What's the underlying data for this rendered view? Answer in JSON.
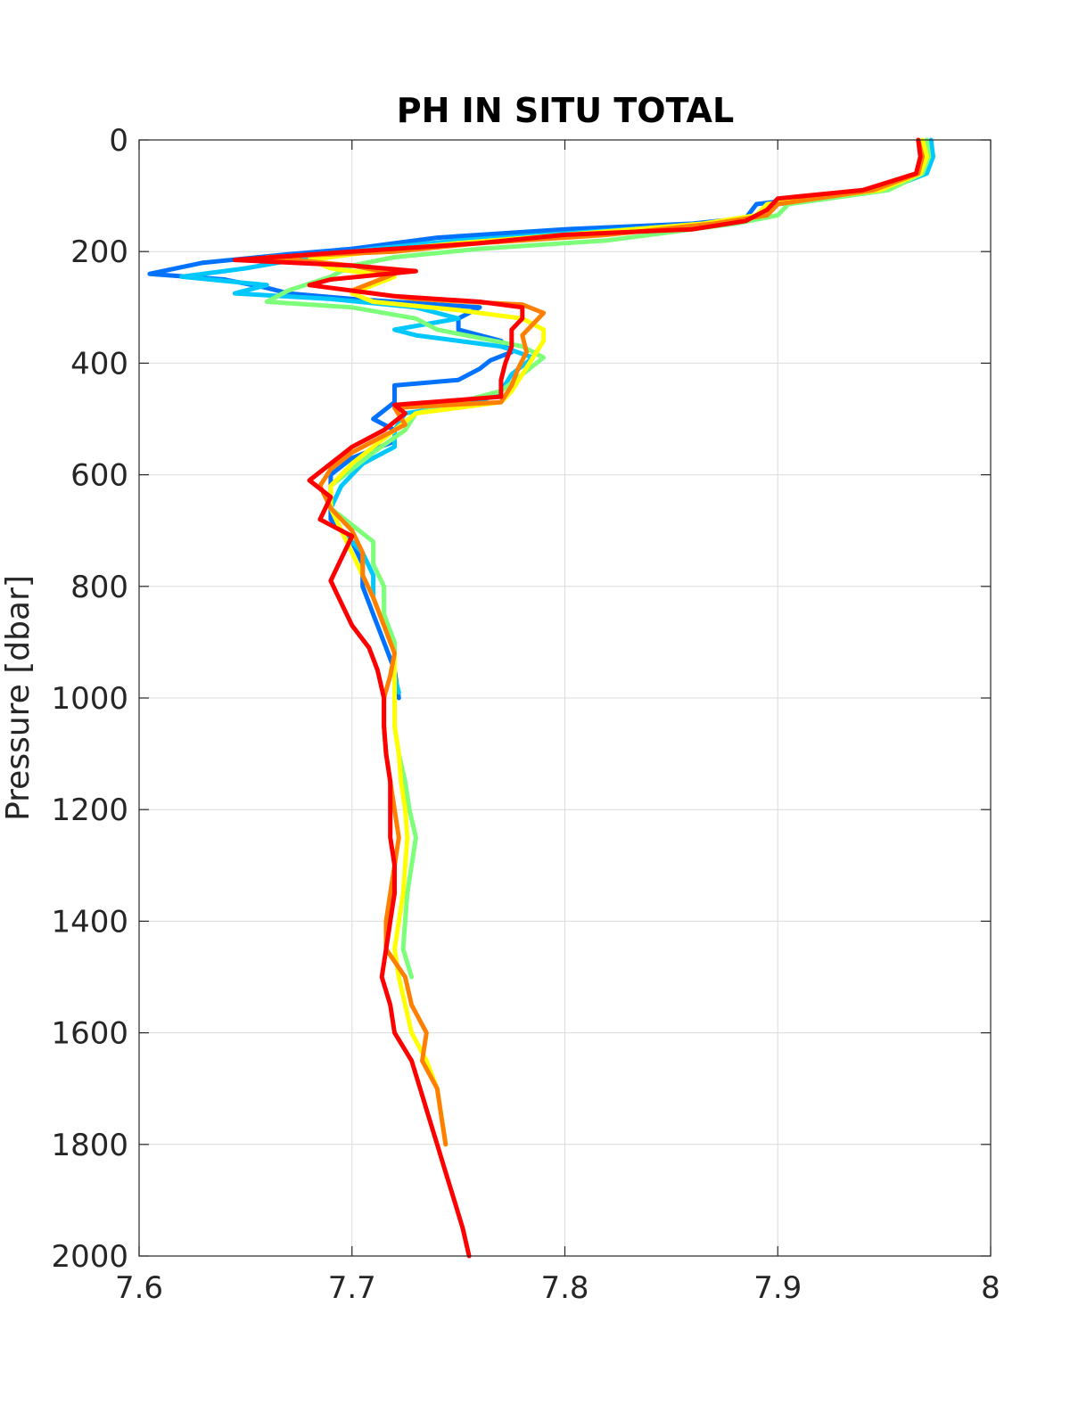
{
  "chart_data": {
    "type": "line",
    "title": "PH IN SITU TOTAL",
    "xlabel": "",
    "ylabel": "Pressure [dbar]",
    "xlim": [
      7.6,
      8.0
    ],
    "ylim": [
      0,
      2000
    ],
    "y_reversed": true,
    "grid": true,
    "x_ticks": [
      "7.6",
      "7.7",
      "7.8",
      "7.9",
      "8"
    ],
    "x_tick_values": [
      7.6,
      7.7,
      7.8,
      7.9,
      8.0
    ],
    "y_ticks": [
      "0",
      "200",
      "400",
      "600",
      "800",
      "1000",
      "1200",
      "1400",
      "1600",
      "1800",
      "2000"
    ],
    "y_tick_values": [
      0,
      200,
      400,
      600,
      800,
      1000,
      1200,
      1400,
      1600,
      1800,
      2000
    ],
    "series": [
      {
        "color": "#0072ff",
        "points": [
          [
            7.97,
            0
          ],
          [
            7.972,
            30
          ],
          [
            7.968,
            60
          ],
          [
            7.945,
            90
          ],
          [
            7.89,
            115
          ],
          [
            7.885,
            140
          ],
          [
            7.86,
            150
          ],
          [
            7.8,
            160
          ],
          [
            7.74,
            175
          ],
          [
            7.7,
            195
          ],
          [
            7.67,
            205
          ],
          [
            7.63,
            220
          ],
          [
            7.605,
            240
          ],
          [
            7.64,
            250
          ],
          [
            7.66,
            265
          ],
          [
            7.67,
            275
          ],
          [
            7.7,
            285
          ],
          [
            7.76,
            300
          ],
          [
            7.75,
            320
          ],
          [
            7.75,
            340
          ],
          [
            7.77,
            360
          ],
          [
            7.775,
            380
          ],
          [
            7.765,
            395
          ],
          [
            7.76,
            410
          ],
          [
            7.75,
            430
          ],
          [
            7.72,
            440
          ],
          [
            7.72,
            470
          ],
          [
            7.71,
            500
          ],
          [
            7.72,
            520
          ],
          [
            7.72,
            540
          ],
          [
            7.7,
            570
          ],
          [
            7.69,
            600
          ],
          [
            7.69,
            640
          ],
          [
            7.69,
            680
          ],
          [
            7.7,
            720
          ],
          [
            7.705,
            760
          ],
          [
            7.705,
            800
          ],
          [
            7.71,
            850
          ],
          [
            7.715,
            900
          ],
          [
            7.72,
            950
          ],
          [
            7.722,
            1000
          ]
        ]
      },
      {
        "color": "#00c8ff",
        "points": [
          [
            7.972,
            0
          ],
          [
            7.973,
            30
          ],
          [
            7.97,
            60
          ],
          [
            7.95,
            90
          ],
          [
            7.9,
            115
          ],
          [
            7.895,
            135
          ],
          [
            7.87,
            150
          ],
          [
            7.81,
            165
          ],
          [
            7.75,
            180
          ],
          [
            7.71,
            195
          ],
          [
            7.68,
            210
          ],
          [
            7.65,
            230
          ],
          [
            7.62,
            245
          ],
          [
            7.66,
            260
          ],
          [
            7.645,
            275
          ],
          [
            7.69,
            285
          ],
          [
            7.73,
            300
          ],
          [
            7.75,
            320
          ],
          [
            7.72,
            340
          ],
          [
            7.73,
            350
          ],
          [
            7.77,
            370
          ],
          [
            7.785,
            390
          ],
          [
            7.775,
            420
          ],
          [
            7.77,
            450
          ],
          [
            7.76,
            470
          ],
          [
            7.725,
            490
          ],
          [
            7.72,
            520
          ],
          [
            7.72,
            550
          ],
          [
            7.705,
            580
          ],
          [
            7.695,
            620
          ],
          [
            7.69,
            660
          ],
          [
            7.695,
            700
          ],
          [
            7.705,
            740
          ],
          [
            7.71,
            780
          ],
          [
            7.71,
            820
          ],
          [
            7.715,
            870
          ],
          [
            7.72,
            920
          ],
          [
            7.72,
            960
          ],
          [
            7.722,
            990
          ]
        ]
      },
      {
        "color": "#7dff7a",
        "points": [
          [
            7.97,
            0
          ],
          [
            7.971,
            30
          ],
          [
            7.968,
            60
          ],
          [
            7.952,
            90
          ],
          [
            7.905,
            115
          ],
          [
            7.9,
            135
          ],
          [
            7.88,
            150
          ],
          [
            7.82,
            180
          ],
          [
            7.76,
            195
          ],
          [
            7.72,
            210
          ],
          [
            7.7,
            225
          ],
          [
            7.69,
            245
          ],
          [
            7.67,
            270
          ],
          [
            7.66,
            290
          ],
          [
            7.7,
            300
          ],
          [
            7.73,
            320
          ],
          [
            7.74,
            340
          ],
          [
            7.76,
            355
          ],
          [
            7.78,
            370
          ],
          [
            7.79,
            390
          ],
          [
            7.78,
            420
          ],
          [
            7.77,
            450
          ],
          [
            7.75,
            470
          ],
          [
            7.73,
            490
          ],
          [
            7.725,
            520
          ],
          [
            7.71,
            560
          ],
          [
            7.7,
            590
          ],
          [
            7.69,
            620
          ],
          [
            7.69,
            660
          ],
          [
            7.7,
            690
          ],
          [
            7.71,
            720
          ],
          [
            7.71,
            760
          ],
          [
            7.715,
            800
          ],
          [
            7.715,
            850
          ],
          [
            7.72,
            900
          ],
          [
            7.72,
            960
          ],
          [
            7.72,
            1000
          ],
          [
            7.72,
            1050
          ],
          [
            7.722,
            1100
          ],
          [
            7.725,
            1150
          ],
          [
            7.727,
            1200
          ],
          [
            7.73,
            1250
          ],
          [
            7.728,
            1300
          ],
          [
            7.726,
            1350
          ],
          [
            7.725,
            1400
          ],
          [
            7.724,
            1450
          ],
          [
            7.728,
            1500
          ]
        ]
      },
      {
        "color": "#ffff00",
        "points": [
          [
            7.968,
            0
          ],
          [
            7.97,
            30
          ],
          [
            7.967,
            60
          ],
          [
            7.948,
            90
          ],
          [
            7.895,
            115
          ],
          [
            7.89,
            135
          ],
          [
            7.865,
            150
          ],
          [
            7.8,
            170
          ],
          [
            7.75,
            185
          ],
          [
            7.71,
            200
          ],
          [
            7.68,
            215
          ],
          [
            7.69,
            230
          ],
          [
            7.72,
            245
          ],
          [
            7.71,
            260
          ],
          [
            7.7,
            275
          ],
          [
            7.71,
            290
          ],
          [
            7.75,
            305
          ],
          [
            7.78,
            320
          ],
          [
            7.79,
            340
          ],
          [
            7.79,
            360
          ],
          [
            7.785,
            390
          ],
          [
            7.78,
            420
          ],
          [
            7.775,
            450
          ],
          [
            7.77,
            470
          ],
          [
            7.73,
            490
          ],
          [
            7.72,
            520
          ],
          [
            7.71,
            550
          ],
          [
            7.7,
            580
          ],
          [
            7.69,
            620
          ],
          [
            7.69,
            660
          ],
          [
            7.695,
            700
          ],
          [
            7.7,
            740
          ],
          [
            7.705,
            780
          ],
          [
            7.71,
            820
          ],
          [
            7.715,
            870
          ],
          [
            7.72,
            920
          ],
          [
            7.72,
            970
          ],
          [
            7.72,
            1000
          ],
          [
            7.72,
            1050
          ],
          [
            7.722,
            1100
          ],
          [
            7.723,
            1150
          ],
          [
            7.725,
            1200
          ],
          [
            7.726,
            1250
          ],
          [
            7.725,
            1300
          ],
          [
            7.724,
            1350
          ],
          [
            7.722,
            1400
          ],
          [
            7.72,
            1450
          ],
          [
            7.722,
            1500
          ],
          [
            7.725,
            1550
          ],
          [
            7.728,
            1600
          ],
          [
            7.735,
            1650
          ],
          [
            7.74,
            1700
          ],
          [
            7.742,
            1750
          ],
          [
            7.744,
            1800
          ]
        ]
      },
      {
        "color": "#ff8000",
        "points": [
          [
            7.966,
            0
          ],
          [
            7.968,
            30
          ],
          [
            7.966,
            60
          ],
          [
            7.945,
            90
          ],
          [
            7.9,
            115
          ],
          [
            7.895,
            135
          ],
          [
            7.87,
            150
          ],
          [
            7.82,
            170
          ],
          [
            7.76,
            185
          ],
          [
            7.72,
            200
          ],
          [
            7.66,
            210
          ],
          [
            7.7,
            225
          ],
          [
            7.72,
            240
          ],
          [
            7.71,
            255
          ],
          [
            7.7,
            270
          ],
          [
            7.73,
            285
          ],
          [
            7.78,
            295
          ],
          [
            7.79,
            310
          ],
          [
            7.785,
            330
          ],
          [
            7.78,
            350
          ],
          [
            7.782,
            380
          ],
          [
            7.778,
            410
          ],
          [
            7.775,
            440
          ],
          [
            7.77,
            470
          ],
          [
            7.72,
            480
          ],
          [
            7.725,
            510
          ],
          [
            7.71,
            540
          ],
          [
            7.7,
            560
          ],
          [
            7.69,
            590
          ],
          [
            7.685,
            620
          ],
          [
            7.69,
            660
          ],
          [
            7.7,
            700
          ],
          [
            7.705,
            740
          ],
          [
            7.705,
            780
          ],
          [
            7.71,
            820
          ],
          [
            7.715,
            870
          ],
          [
            7.72,
            920
          ],
          [
            7.718,
            960
          ],
          [
            7.715,
            1000
          ],
          [
            7.715,
            1050
          ],
          [
            7.716,
            1100
          ],
          [
            7.718,
            1150
          ],
          [
            7.72,
            1200
          ],
          [
            7.722,
            1250
          ],
          [
            7.72,
            1300
          ],
          [
            7.718,
            1350
          ],
          [
            7.716,
            1400
          ],
          [
            7.716,
            1450
          ],
          [
            7.725,
            1500
          ],
          [
            7.728,
            1550
          ],
          [
            7.735,
            1600
          ],
          [
            7.733,
            1650
          ],
          [
            7.74,
            1700
          ],
          [
            7.742,
            1750
          ],
          [
            7.744,
            1800
          ]
        ]
      },
      {
        "color": "#ff0000",
        "points": [
          [
            7.966,
            0
          ],
          [
            7.967,
            30
          ],
          [
            7.965,
            60
          ],
          [
            7.94,
            90
          ],
          [
            7.9,
            105
          ],
          [
            7.895,
            125
          ],
          [
            7.885,
            145
          ],
          [
            7.86,
            160
          ],
          [
            7.8,
            170
          ],
          [
            7.76,
            185
          ],
          [
            7.7,
            200
          ],
          [
            7.645,
            215
          ],
          [
            7.7,
            225
          ],
          [
            7.73,
            235
          ],
          [
            7.69,
            250
          ],
          [
            7.68,
            260
          ],
          [
            7.72,
            280
          ],
          [
            7.76,
            290
          ],
          [
            7.78,
            300
          ],
          [
            7.78,
            320
          ],
          [
            7.775,
            340
          ],
          [
            7.775,
            370
          ],
          [
            7.772,
            400
          ],
          [
            7.77,
            430
          ],
          [
            7.77,
            460
          ],
          [
            7.72,
            475
          ],
          [
            7.725,
            490
          ],
          [
            7.715,
            520
          ],
          [
            7.7,
            550
          ],
          [
            7.69,
            580
          ],
          [
            7.68,
            610
          ],
          [
            7.69,
            640
          ],
          [
            7.685,
            680
          ],
          [
            7.7,
            710
          ],
          [
            7.695,
            750
          ],
          [
            7.69,
            790
          ],
          [
            7.695,
            830
          ],
          [
            7.7,
            870
          ],
          [
            7.708,
            910
          ],
          [
            7.712,
            950
          ],
          [
            7.715,
            1000
          ],
          [
            7.715,
            1050
          ],
          [
            7.716,
            1100
          ],
          [
            7.718,
            1150
          ],
          [
            7.718,
            1200
          ],
          [
            7.718,
            1250
          ],
          [
            7.72,
            1300
          ],
          [
            7.72,
            1350
          ],
          [
            7.718,
            1400
          ],
          [
            7.716,
            1450
          ],
          [
            7.714,
            1500
          ],
          [
            7.718,
            1550
          ],
          [
            7.72,
            1600
          ],
          [
            7.728,
            1650
          ],
          [
            7.732,
            1700
          ],
          [
            7.736,
            1750
          ],
          [
            7.74,
            1800
          ],
          [
            7.744,
            1850
          ],
          [
            7.748,
            1900
          ],
          [
            7.752,
            1950
          ],
          [
            7.755,
            2000
          ]
        ]
      }
    ]
  }
}
